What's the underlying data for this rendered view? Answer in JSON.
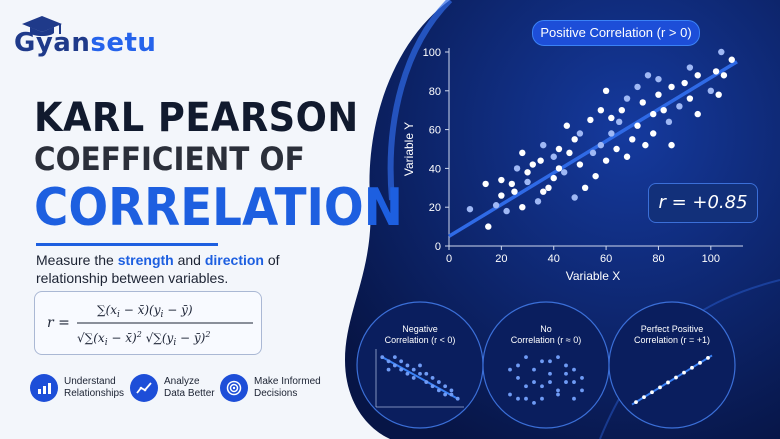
{
  "brand": {
    "name_part1": "Gyan",
    "name_part2": "setu"
  },
  "title": {
    "line1": "KARL PEARSON",
    "line2": "COEFFICIENT OF",
    "line3": "CORRELATION"
  },
  "description": {
    "pre": "Measure the ",
    "strong1": "strength",
    "mid": " and ",
    "strong2": "direction",
    "post": " of relationship between variables."
  },
  "features": [
    {
      "icon": "bar-chart-icon",
      "line1": "Understand",
      "line2": "Relationships"
    },
    {
      "icon": "analyze-chart-icon",
      "line1": "Analyze",
      "line2": "Data Better"
    },
    {
      "icon": "target-icon",
      "line1": "Make Informed",
      "line2": "Decisions"
    }
  ],
  "colors": {
    "accent": "#1d5fe0",
    "navy": "#0b1e5b",
    "dark_bg": "#0a1a4f",
    "point": "#c9d8ff"
  },
  "chart_data": [
    {
      "type": "scatter",
      "title": "Positive Correlation (r > 0)",
      "xlabel": "Variable X",
      "ylabel": "Variable Y",
      "xlim": [
        0,
        110
      ],
      "ylim": [
        0,
        100
      ],
      "xticks": [
        "0",
        "20",
        "40",
        "60",
        "80",
        "100"
      ],
      "yticks": [
        "0",
        "20",
        "40",
        "60",
        "80",
        "100"
      ],
      "r_label": "r = +0.85",
      "trend": {
        "x": [
          0,
          110
        ],
        "y": [
          5,
          95
        ]
      },
      "x": [
        8,
        14,
        15,
        18,
        20,
        20,
        22,
        24,
        25,
        26,
        28,
        28,
        30,
        30,
        32,
        34,
        35,
        36,
        36,
        38,
        40,
        40,
        42,
        42,
        44,
        45,
        46,
        48,
        48,
        50,
        50,
        52,
        54,
        55,
        56,
        58,
        58,
        60,
        60,
        62,
        62,
        64,
        65,
        66,
        68,
        68,
        70,
        72,
        72,
        74,
        75,
        76,
        78,
        78,
        80,
        80,
        82,
        84,
        85,
        85,
        88,
        90,
        92,
        92,
        95,
        95,
        100,
        102,
        103,
        104,
        105,
        108
      ],
      "y": [
        19,
        32,
        10,
        21,
        26,
        34,
        18,
        32,
        28,
        40,
        48,
        20,
        33,
        38,
        42,
        23,
        44,
        28,
        52,
        30,
        35,
        46,
        40,
        50,
        38,
        62,
        48,
        25,
        55,
        42,
        58,
        30,
        65,
        48,
        36,
        70,
        52,
        80,
        44,
        58,
        66,
        50,
        64,
        70,
        46,
        76,
        55,
        62,
        82,
        74,
        52,
        88,
        68,
        58,
        86,
        78,
        70,
        64,
        52,
        82,
        72,
        84,
        76,
        92,
        68,
        88,
        80,
        90,
        78,
        100,
        88,
        96
      ]
    },
    {
      "type": "scatter",
      "title": "Negative Correlation (r < 0)",
      "x": [
        1,
        2,
        2,
        3,
        3,
        4,
        4,
        5,
        5,
        6,
        6,
        7,
        7,
        8,
        8,
        9,
        9,
        10,
        10,
        11,
        11,
        12,
        12,
        13
      ],
      "y": [
        12,
        11,
        9,
        10,
        12,
        9,
        11,
        8,
        10,
        9,
        7,
        8,
        10,
        6,
        8,
        7,
        5,
        6,
        4,
        5,
        3,
        4,
        3,
        2
      ]
    },
    {
      "type": "scatter",
      "title": "No Correlation (r ≈ 0)",
      "x": [
        1,
        2,
        3,
        4,
        5,
        6,
        7,
        8,
        9,
        10,
        2,
        4,
        6,
        8,
        10,
        3,
        5,
        7,
        9,
        1,
        4,
        6,
        8,
        5,
        3,
        7,
        9,
        2
      ],
      "y": [
        3,
        7,
        2,
        9,
        5,
        8,
        4,
        6,
        2,
        7,
        10,
        1,
        11,
        10,
        4,
        5,
        2,
        3,
        9,
        9,
        6,
        6,
        8,
        11,
        12,
        12,
        6,
        2
      ]
    },
    {
      "type": "scatter",
      "title": "Perfect Positive Correlation (r = +1)",
      "x": [
        1,
        2,
        3,
        4,
        5,
        6,
        7,
        8,
        9,
        10
      ],
      "y": [
        1,
        2,
        3,
        4,
        5,
        6,
        7,
        8,
        9,
        10
      ]
    }
  ],
  "small_titles": {
    "neg": [
      "Negative",
      "Correlation (r < 0)"
    ],
    "none": [
      "No",
      "Correlation (r ≈ 0)"
    ],
    "perfect": [
      "Perfect Positive",
      "Correlation (r = +1)"
    ]
  }
}
